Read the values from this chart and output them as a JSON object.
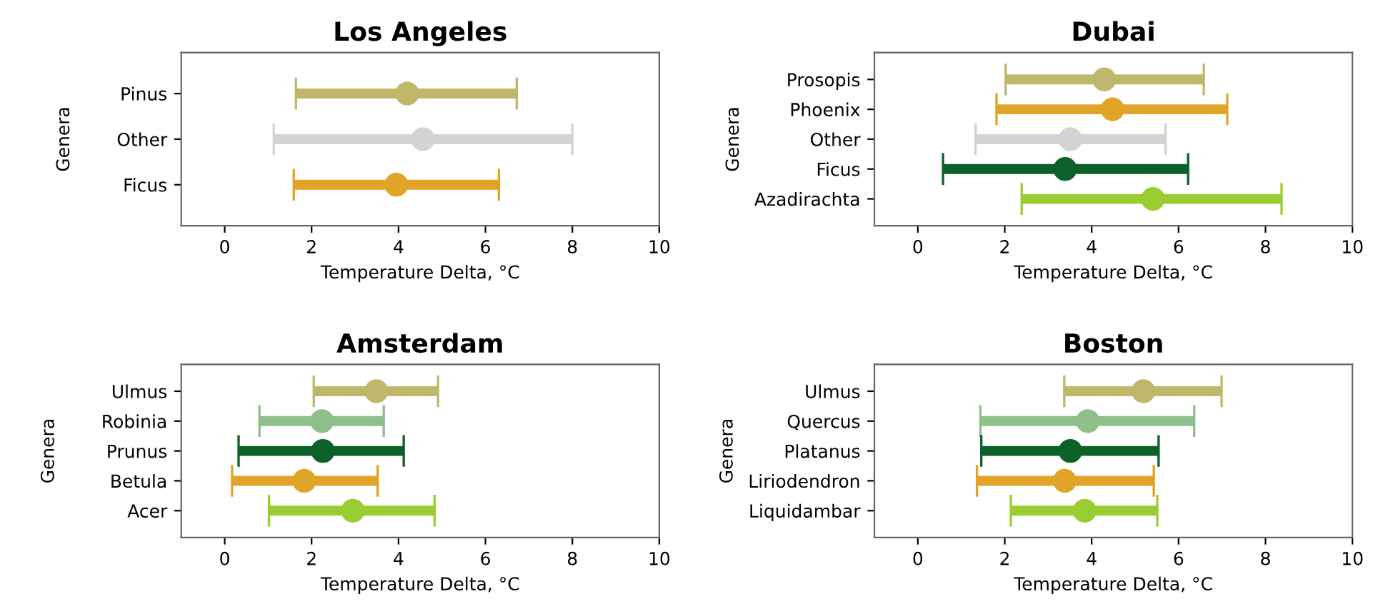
{
  "chart_data": [
    {
      "type": "scatter",
      "orientation": "horizontal",
      "title": "Los Angeles",
      "xlabel": "Temperature Delta, °C",
      "ylabel": "Genera",
      "marker": "circle",
      "xlim": [
        -1,
        10
      ],
      "xticks": [
        0,
        2,
        4,
        6,
        8,
        10
      ],
      "categories": [
        "Pinus",
        "Other",
        "Ficus"
      ],
      "values": [
        4.2,
        4.56,
        3.95
      ],
      "errors": [
        [
          1.64,
          6.72
        ],
        [
          1.13,
          8.0
        ],
        [
          1.59,
          6.31
        ]
      ],
      "colors": [
        "#bfb86a",
        "#d3d3d3",
        "#e0a526"
      ]
    },
    {
      "type": "scatter",
      "orientation": "horizontal",
      "title": "Dubai",
      "xlabel": "Temperature Delta, °C",
      "ylabel": "Genera",
      "marker": "circle",
      "xlim": [
        -1,
        10
      ],
      "xticks": [
        0,
        2,
        4,
        6,
        8,
        10
      ],
      "categories": [
        "Prosopis",
        "Phoenix",
        "Other",
        "Ficus",
        "Azadirachta"
      ],
      "values": [
        4.29,
        4.48,
        3.51,
        3.39,
        5.41
      ],
      "errors": [
        [
          2.02,
          6.58
        ],
        [
          1.81,
          7.12
        ],
        [
          1.33,
          5.7
        ],
        [
          0.58,
          6.22
        ],
        [
          2.39,
          8.37
        ]
      ],
      "colors": [
        "#bfb86a",
        "#e0a526",
        "#d3d3d3",
        "#0b6127",
        "#9acd32"
      ]
    },
    {
      "type": "scatter",
      "orientation": "horizontal",
      "title": "Amsterdam",
      "xlabel": "Temperature Delta, °C",
      "ylabel": "Genera",
      "marker": "circle",
      "xlim": [
        -1,
        10
      ],
      "xticks": [
        0,
        2,
        4,
        6,
        8,
        10
      ],
      "categories": [
        "Ulmus",
        "Robinia",
        "Prunus",
        "Betula",
        "Acer"
      ],
      "values": [
        3.49,
        2.24,
        2.26,
        1.83,
        2.95
      ],
      "errors": [
        [
          2.05,
          4.91
        ],
        [
          0.8,
          3.66
        ],
        [
          0.32,
          4.12
        ],
        [
          0.17,
          3.52
        ],
        [
          1.02,
          4.83
        ]
      ],
      "colors": [
        "#bfb86a",
        "#8fbf8a",
        "#0b6127",
        "#e0a526",
        "#9acd32"
      ]
    },
    {
      "type": "scatter",
      "orientation": "horizontal",
      "title": "Boston",
      "xlabel": "Temperature Delta, °C",
      "ylabel": "Genera",
      "marker": "circle",
      "xlim": [
        -1,
        10
      ],
      "xticks": [
        0,
        2,
        4,
        6,
        8,
        10
      ],
      "categories": [
        "Ulmus",
        "Quercus",
        "Platanus",
        "Liriodendron",
        "Liquidambar"
      ],
      "values": [
        5.19,
        3.91,
        3.51,
        3.38,
        3.84
      ],
      "errors": [
        [
          3.37,
          6.99
        ],
        [
          1.44,
          6.36
        ],
        [
          1.46,
          5.54
        ],
        [
          1.36,
          5.43
        ],
        [
          2.14,
          5.51
        ]
      ],
      "colors": [
        "#bfb86a",
        "#8fbf8a",
        "#0b6127",
        "#e0a526",
        "#9acd32"
      ]
    }
  ]
}
